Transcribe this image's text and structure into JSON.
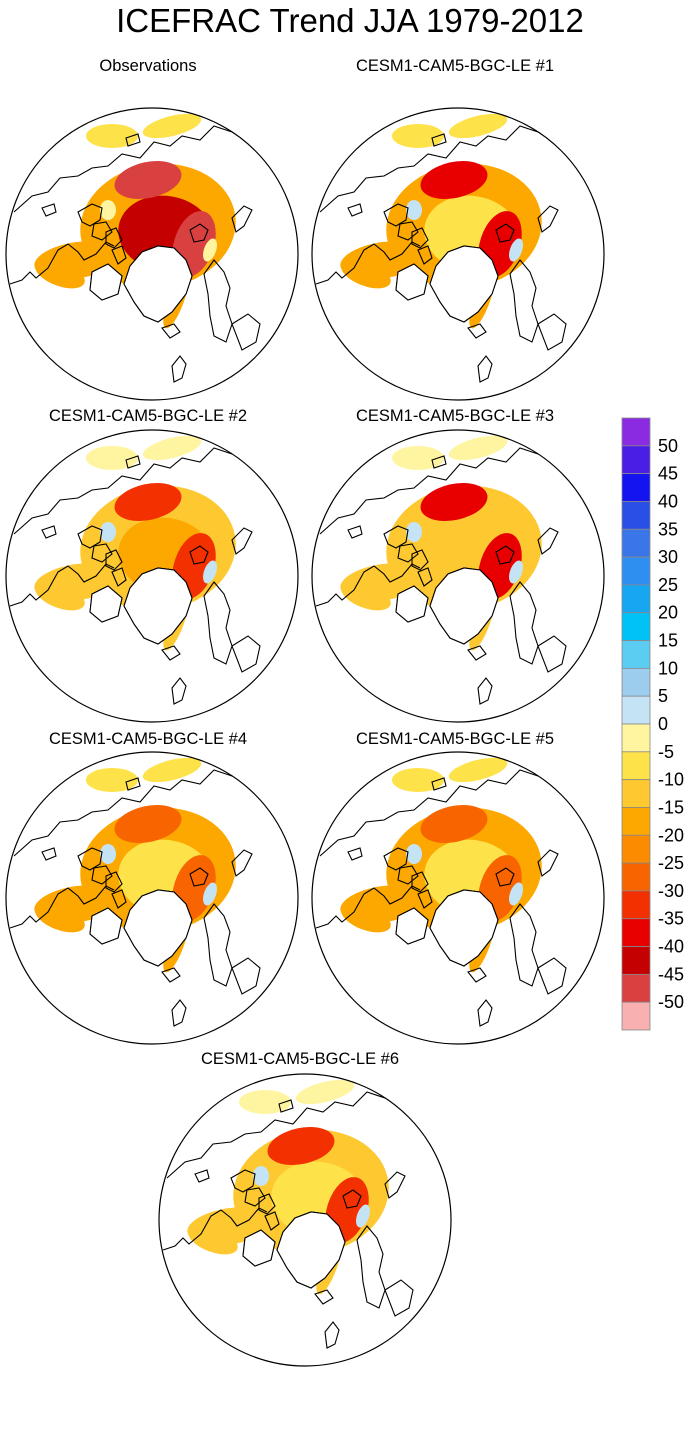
{
  "chart_data": {
    "type": "heatmap",
    "title": "ICEFRAC Trend JJA 1979-2012",
    "projection": "north polar stereographic",
    "panels": [
      {
        "title": "Observations",
        "pattern": {
          "ring": -15,
          "inner": -40,
          "hot": -45,
          "pos": 0
        }
      },
      {
        "title": "CESM1-CAM5-BGC-LE #1",
        "pattern": {
          "ring": -15,
          "inner": -5,
          "hot": -35,
          "pos": 5
        }
      },
      {
        "title": "CESM1-CAM5-BGC-LE #2",
        "pattern": {
          "ring": -10,
          "inner": -15,
          "hot": -30,
          "pos": 5
        }
      },
      {
        "title": "CESM1-CAM5-BGC-LE #3",
        "pattern": {
          "ring": -10,
          "inner": -10,
          "hot": -35,
          "pos": 5
        }
      },
      {
        "title": "CESM1-CAM5-BGC-LE #4",
        "pattern": {
          "ring": -15,
          "inner": -5,
          "hot": -25,
          "pos": 5
        }
      },
      {
        "title": "CESM1-CAM5-BGC-LE #5",
        "pattern": {
          "ring": -15,
          "inner": -5,
          "hot": -25,
          "pos": 5
        }
      },
      {
        "title": "CESM1-CAM5-BGC-LE #6",
        "pattern": {
          "ring": -10,
          "inner": -5,
          "hot": -30,
          "pos": 5
        }
      }
    ],
    "colorbar": {
      "labels": [
        "50",
        "45",
        "40",
        "35",
        "30",
        "25",
        "20",
        "15",
        "10",
        "5",
        "0",
        "-5",
        "-10",
        "-15",
        "-20",
        "-25",
        "-30",
        "-35",
        "-40",
        "-45",
        "-50"
      ],
      "colors": [
        "#8a2be2",
        "#4b1ee6",
        "#1414f0",
        "#2a4fe6",
        "#3a76e8",
        "#2f8ff0",
        "#16a6f2",
        "#00c2f6",
        "#5ccdf2",
        "#9ccdee",
        "#c4e4f6",
        "#fff5a0",
        "#fde24a",
        "#fdc830",
        "#fda800",
        "#fb8c00",
        "#f86400",
        "#f23000",
        "#e80000",
        "#c40000",
        "#d94040",
        "#f8b0b0"
      ]
    }
  }
}
